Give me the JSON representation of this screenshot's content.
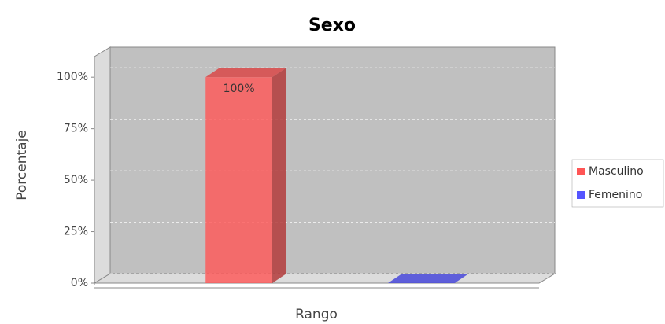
{
  "chart_data": {
    "type": "bar3d",
    "title": "Sexo",
    "x_label": "Rango",
    "y_label": "Porcentaje",
    "categories": [
      null
    ],
    "series": [
      {
        "name": "Masculino",
        "color": "#ff5555",
        "values": [
          100
        ],
        "value_labels": [
          "100%"
        ]
      },
      {
        "name": "Femenino",
        "color": "#5555ff",
        "values": [
          0
        ]
      }
    ],
    "ylim": [
      0,
      110
    ],
    "yticks": [
      {
        "value": 0,
        "label": "0%"
      },
      {
        "value": 25,
        "label": "25%"
      },
      {
        "value": 50,
        "label": "50%"
      },
      {
        "value": 75,
        "label": "75%"
      },
      {
        "value": 100,
        "label": "100%"
      }
    ],
    "grid": true,
    "legend": "right"
  }
}
